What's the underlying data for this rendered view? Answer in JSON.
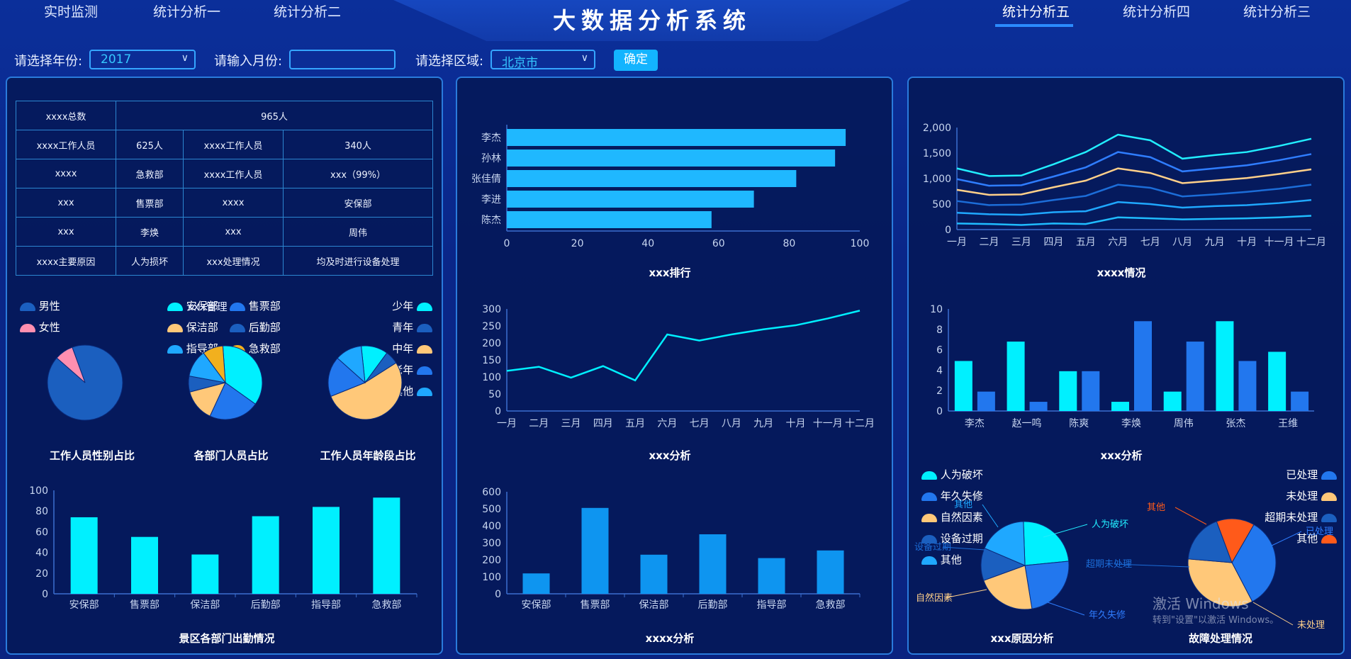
{
  "nav": {
    "left": [
      "实时监测",
      "统计分析一",
      "统计分析二"
    ],
    "right": [
      "统计分析五",
      "统计分析四",
      "统计分析三"
    ],
    "title": "大数据分析系统"
  },
  "filters": {
    "year_label": "请选择年份:",
    "year_value": "2017",
    "month_label": "请输入月份:",
    "month_value": "",
    "region_label": "请选择区域:",
    "region_value": "北京市",
    "confirm": "确定"
  },
  "info_table": {
    "rows": [
      [
        "xxxx总数",
        "965人"
      ],
      [
        "xxxx工作人员",
        "625人",
        "xxxx工作人员",
        "340人"
      ],
      [
        "xxxx",
        "急救部",
        "xxxx工作人员",
        "xxx（99%）"
      ],
      [
        "xxx",
        "售票部",
        "xxxx",
        "安保部"
      ],
      [
        "xxx",
        "李焕",
        "xxx",
        "周伟"
      ],
      [
        "xxxx主要原因",
        "人为损坏",
        "xxx处理情况",
        "均及时进行设备处理"
      ]
    ]
  },
  "colors": {
    "cyan": "#00f0ff",
    "blue": "#2277ee",
    "darkblue": "#1b5fbf",
    "peach": "#ffc879",
    "pink": "#ff8fb0",
    "orange": "#ff5a1a",
    "sky": "#1fa8ff",
    "bar": "#0e95f0"
  },
  "pie_gender": {
    "title": "工作人员性别占比",
    "legend": [
      "男性",
      "女性"
    ],
    "chart_data": {
      "type": "pie",
      "labels": [
        "男性",
        "女性"
      ],
      "values": [
        92,
        8
      ]
    }
  },
  "pie_dept": {
    "title": "各部门人员占比",
    "legend": [
      "安保部",
      "售票部",
      "保洁部",
      "后勤部",
      "指导部",
      "急救部"
    ],
    "legend_overlay": "xxx管理",
    "chart_data": {
      "type": "pie",
      "labels": [
        "安保部",
        "售票部",
        "保洁部",
        "后勤部",
        "指导部",
        "急救部"
      ],
      "values": [
        36,
        22,
        14,
        7,
        12,
        9
      ]
    }
  },
  "pie_age": {
    "title": "工作人员年龄段占比",
    "legend": [
      "少年",
      "青年",
      "中年",
      "老年",
      "其他"
    ],
    "chart_data": {
      "type": "pie",
      "labels": [
        "少年",
        "青年",
        "中年",
        "老年",
        "其他"
      ],
      "values": [
        10,
        5,
        45,
        15,
        10
      ]
    }
  },
  "bar_attendance": {
    "title": "景区各部门出勤情况",
    "chart_data": {
      "type": "bar",
      "categories": [
        "安保部",
        "售票部",
        "保洁部",
        "后勤部",
        "指导部",
        "急救部"
      ],
      "values": [
        74,
        55,
        38,
        75,
        84,
        93
      ],
      "ylim": [
        0,
        100
      ],
      "yticks": [
        0,
        20,
        40,
        60,
        80,
        100
      ]
    }
  },
  "hbar_rank": {
    "title": "xxx排行",
    "chart_data": {
      "type": "bar",
      "orientation": "horizontal",
      "categories": [
        "李杰",
        "孙林",
        "张佳倩",
        "李进",
        "陈杰"
      ],
      "values": [
        96,
        93,
        82,
        70,
        58
      ],
      "xlim": [
        0,
        100
      ],
      "xticks": [
        0,
        20,
        40,
        60,
        80,
        100
      ]
    }
  },
  "line_analysis": {
    "title": "xxx分析",
    "chart_data": {
      "type": "line",
      "categories": [
        "一月",
        "二月",
        "三月",
        "四月",
        "五月",
        "六月",
        "七月",
        "八月",
        "九月",
        "十月",
        "十一月",
        "十二月"
      ],
      "values": [
        118,
        130,
        98,
        132,
        90,
        225,
        207,
        225,
        240,
        252,
        272,
        295
      ],
      "ylim": [
        0,
        300
      ],
      "yticks": [
        0,
        50,
        100,
        150,
        200,
        250,
        300
      ]
    }
  },
  "bar_analysis": {
    "title": "xxxx分析",
    "chart_data": {
      "type": "bar",
      "categories": [
        "安保部",
        "售票部",
        "保洁部",
        "后勤部",
        "指导部",
        "急救部"
      ],
      "values": [
        120,
        505,
        230,
        350,
        210,
        255
      ],
      "ylim": [
        0,
        600
      ],
      "yticks": [
        0,
        100,
        200,
        300,
        400,
        500,
        600
      ]
    }
  },
  "multi_line": {
    "title": "xxxx情况",
    "chart_data": {
      "type": "line",
      "categories": [
        "一月",
        "二月",
        "三月",
        "四月",
        "五月",
        "六月",
        "七月",
        "八月",
        "九月",
        "十月",
        "十一月",
        "十二月"
      ],
      "ylim": [
        0,
        2000
      ],
      "yticks": [
        "0",
        "500",
        "1,000",
        "1,500",
        "2,000"
      ],
      "series": [
        {
          "values": [
            1200,
            1050,
            1060,
            1280,
            1520,
            1860,
            1750,
            1390,
            1460,
            1520,
            1640,
            1780
          ]
        },
        {
          "values": [
            990,
            860,
            870,
            1040,
            1220,
            1520,
            1420,
            1140,
            1200,
            1260,
            1360,
            1480
          ]
        },
        {
          "values": [
            780,
            680,
            690,
            830,
            960,
            1200,
            1110,
            910,
            960,
            1010,
            1090,
            1180
          ]
        },
        {
          "values": [
            560,
            480,
            490,
            580,
            660,
            880,
            820,
            650,
            690,
            740,
            800,
            880
          ]
        },
        {
          "values": [
            330,
            300,
            290,
            340,
            360,
            540,
            500,
            430,
            460,
            480,
            520,
            580
          ]
        },
        {
          "values": [
            120,
            110,
            90,
            120,
            110,
            240,
            220,
            200,
            210,
            220,
            240,
            270
          ]
        }
      ]
    }
  },
  "grouped_bar": {
    "title": "xxx分析",
    "chart_data": {
      "type": "bar",
      "categories": [
        "李杰",
        "赵一鸣",
        "陈爽",
        "李焕",
        "周伟",
        "张杰",
        "王维"
      ],
      "ylim": [
        0,
        10
      ],
      "yticks": [
        0,
        2,
        4,
        6,
        8,
        10
      ],
      "series": [
        {
          "values": [
            4.9,
            6.8,
            3.9,
            0.9,
            1.9,
            8.8,
            5.8
          ]
        },
        {
          "values": [
            1.9,
            0.9,
            3.9,
            8.8,
            6.8,
            4.9,
            1.9
          ]
        }
      ]
    }
  },
  "pie_cause": {
    "title": "xxx原因分析",
    "legend": [
      "人为破坏",
      "年久失修",
      "自然因素",
      "设备过期",
      "其他"
    ],
    "labels_cut": [
      "人为破坏",
      "年久失修",
      "自然因素",
      "设备过期",
      "其他"
    ],
    "chart_data": {
      "type": "pie",
      "labels": [
        "人为破坏",
        "年久失修",
        "自然因素",
        "设备过期",
        "其他"
      ],
      "values": [
        24,
        24,
        22,
        12,
        18
      ]
    }
  },
  "pie_fault": {
    "title": "故障处理情况",
    "legend": [
      "已处理",
      "未处理",
      "超期未处理",
      "其他"
    ],
    "labels_cut": [
      "已处理",
      "未处理",
      "超期未处理",
      "其他"
    ],
    "chart_data": {
      "type": "pie",
      "labels": [
        "已处理",
        "未处理",
        "超期未处理",
        "其他"
      ],
      "values": [
        34,
        34,
        18,
        14
      ]
    }
  },
  "watermark": {
    "line1": "激活 Windows",
    "line2": "转到\"设置\"以激活 Windows。"
  }
}
